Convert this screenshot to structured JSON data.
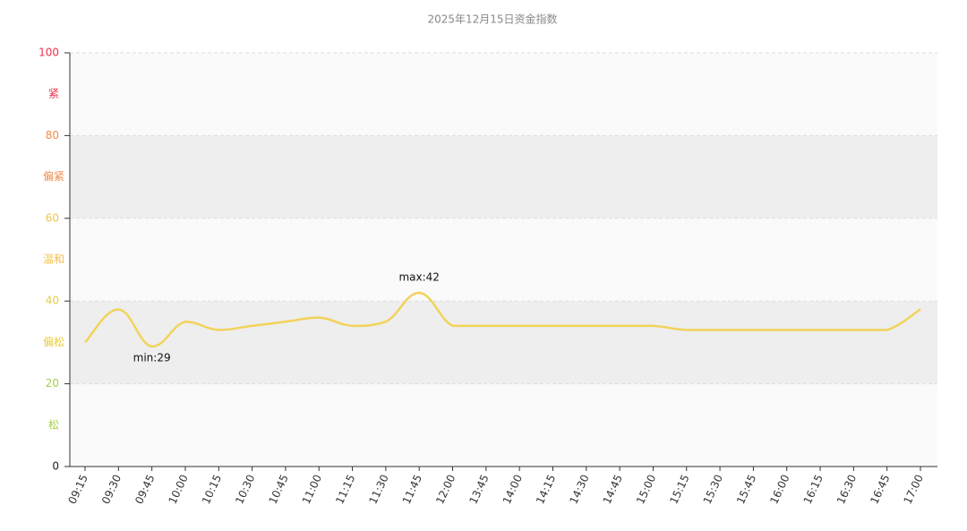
{
  "chart_data": {
    "type": "line",
    "title": "2025年12月15日资金指数",
    "categories": [
      "09:15",
      "09:30",
      "09:45",
      "10:00",
      "10:15",
      "10:30",
      "10:45",
      "11:00",
      "11:15",
      "11:30",
      "11:45",
      "12:00",
      "13:45",
      "14:00",
      "14:15",
      "14:30",
      "14:45",
      "15:00",
      "15:15",
      "15:30",
      "15:45",
      "16:00",
      "16:15",
      "16:30",
      "16:45",
      "17:00"
    ],
    "values": [
      30,
      38,
      29,
      35,
      33,
      34,
      35,
      36,
      34,
      35,
      42,
      34,
      34,
      34,
      34,
      34,
      34,
      34,
      33,
      33,
      33,
      33,
      33,
      33,
      33,
      38
    ],
    "color": "#f2d35a",
    "ylim": [
      0,
      100
    ],
    "yticks": [
      0,
      20,
      40,
      60,
      80,
      100
    ],
    "ytick_colors": [
      "#222222",
      "#a6cf4a",
      "#eacd3c",
      "#f5c04a",
      "#f28a4a",
      "#f0304a"
    ],
    "bands": [
      {
        "from": 0,
        "to": 20,
        "label": "松",
        "color": "#a6cf4a",
        "fill": "#fafafa"
      },
      {
        "from": 20,
        "to": 40,
        "label": "偏松",
        "color": "#eacd3c",
        "fill": "#eeeeee"
      },
      {
        "from": 40,
        "to": 60,
        "label": "温和",
        "color": "#f5c04a",
        "fill": "#fafafa"
      },
      {
        "from": 60,
        "to": 80,
        "label": "偏紧",
        "color": "#f28a4a",
        "fill": "#eeeeee"
      },
      {
        "from": 80,
        "to": 100,
        "label": "紧",
        "color": "#f0304a",
        "fill": "#fafafa"
      }
    ],
    "markers": [
      {
        "label": "min:29",
        "category": "09:45",
        "value": 29,
        "side": "below"
      },
      {
        "label": "max:42",
        "category": "11:45",
        "value": 42,
        "side": "above"
      }
    ],
    "grid": true
  }
}
